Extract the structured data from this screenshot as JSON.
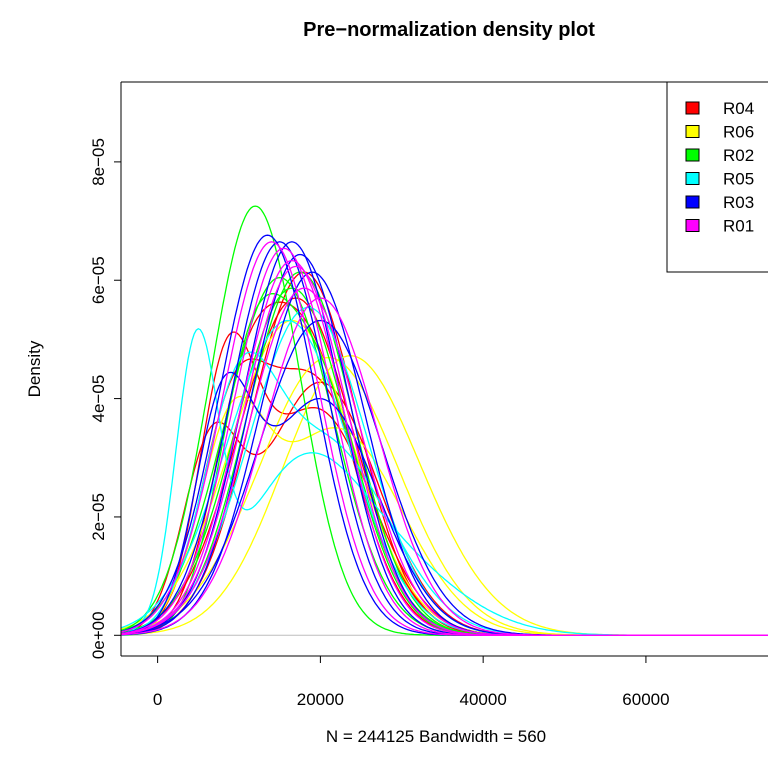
{
  "chart_data": {
    "type": "line",
    "title": "Pre−normalization density plot",
    "xlabel": "N = 244125   Bandwidth = 560",
    "ylabel": "Density",
    "xlim": [
      -4500,
      75000
    ],
    "ylim": [
      -3.5e-06,
      9.35e-05
    ],
    "x_ticks": [
      0,
      20000,
      40000,
      60000
    ],
    "x_tick_labels": [
      "0",
      "20000",
      "40000",
      "60000"
    ],
    "y_ticks": [
      0,
      2e-05,
      4e-05,
      6e-05,
      8e-05
    ],
    "y_tick_labels": [
      "0e+00",
      "2e−05",
      "4e−05",
      "6e−05",
      "8e−05"
    ],
    "grid": false,
    "baseline": 0,
    "legend_position": "top-right",
    "legend": [
      {
        "label": "R04",
        "color": "#ff0000"
      },
      {
        "label": "R06",
        "color": "#ffff00"
      },
      {
        "label": "R02",
        "color": "#00ff00"
      },
      {
        "label": "R05",
        "color": "#00ffff"
      },
      {
        "label": "R03",
        "color": "#0000ff"
      },
      {
        "label": "R01",
        "color": "#ff00ff"
      }
    ],
    "series": [
      {
        "color": "#ff0000",
        "comps": [
          [
            0.25,
            6500,
            3500
          ],
          [
            0.75,
            20000,
            7000
          ]
        ]
      },
      {
        "color": "#ff0000",
        "comps": [
          [
            0.3,
            9000,
            4000
          ],
          [
            0.7,
            19000,
            6500
          ]
        ]
      },
      {
        "color": "#ff0000",
        "comps": [
          [
            0.2,
            10000,
            3800
          ],
          [
            0.8,
            17500,
            6200
          ]
        ]
      },
      {
        "color": "#ff0000",
        "comps": [
          [
            1.0,
            17000,
            7000
          ]
        ]
      },
      {
        "color": "#ff0000",
        "comps": [
          [
            0.35,
            8500,
            3500
          ],
          [
            0.65,
            19500,
            6800
          ]
        ]
      },
      {
        "color": "#ff0000",
        "comps": [
          [
            1.0,
            18000,
            6500
          ]
        ]
      },
      {
        "color": "#ffff00",
        "comps": [
          [
            0.5,
            21500,
            7500
          ],
          [
            0.5,
            27000,
            8500
          ]
        ]
      },
      {
        "color": "#ffff00",
        "comps": [
          [
            1.0,
            21000,
            8500
          ]
        ]
      },
      {
        "color": "#ffff00",
        "comps": [
          [
            0.3,
            9000,
            4000
          ],
          [
            0.7,
            22000,
            8000
          ]
        ]
      },
      {
        "color": "#ffff00",
        "comps": [
          [
            1.0,
            16500,
            7500
          ]
        ]
      },
      {
        "color": "#00ff00",
        "comps": [
          [
            1.0,
            12000,
            5500
          ]
        ]
      },
      {
        "color": "#00ff00",
        "comps": [
          [
            1.0,
            15000,
            6600
          ]
        ]
      },
      {
        "color": "#00ff00",
        "comps": [
          [
            1.0,
            16500,
            6800
          ]
        ]
      },
      {
        "color": "#00ff00",
        "comps": [
          [
            1.0,
            17500,
            6500
          ]
        ]
      },
      {
        "color": "#00ff00",
        "comps": [
          [
            0.3,
            11000,
            4000
          ],
          [
            0.7,
            18500,
            6000
          ]
        ]
      },
      {
        "color": "#00ffff",
        "comps": [
          [
            0.3,
            4800,
            2600
          ],
          [
            0.4,
            17000,
            7000
          ],
          [
            0.3,
            27000,
            9000
          ]
        ]
      },
      {
        "color": "#00ffff",
        "comps": [
          [
            1.0,
            16000,
            7500
          ]
        ]
      },
      {
        "color": "#00ffff",
        "comps": [
          [
            1.0,
            18500,
            7200
          ]
        ]
      },
      {
        "color": "#00ffff",
        "comps": [
          [
            0.4,
            10000,
            4500
          ],
          [
            0.6,
            21000,
            7500
          ]
        ]
      },
      {
        "color": "#0000ff",
        "comps": [
          [
            1.0,
            13500,
            5900
          ]
        ]
      },
      {
        "color": "#0000ff",
        "comps": [
          [
            1.0,
            16500,
            6000
          ]
        ]
      },
      {
        "color": "#0000ff",
        "comps": [
          [
            1.0,
            20000,
            7500
          ]
        ]
      },
      {
        "color": "#0000ff",
        "comps": [
          [
            0.3,
            8000,
            3500
          ],
          [
            0.7,
            20000,
            7000
          ]
        ]
      },
      {
        "color": "#0000ff",
        "comps": [
          [
            1.0,
            17500,
            6200
          ]
        ]
      },
      {
        "color": "#0000ff",
        "comps": [
          [
            1.0,
            19000,
            6500
          ]
        ]
      },
      {
        "color": "#0000ff",
        "comps": [
          [
            1.0,
            15000,
            6000
          ]
        ]
      },
      {
        "color": "#ff00ff",
        "comps": [
          [
            1.0,
            14000,
            6000
          ]
        ]
      },
      {
        "color": "#ff00ff",
        "comps": [
          [
            1.0,
            16500,
            6300
          ]
        ]
      },
      {
        "color": "#ff00ff",
        "comps": [
          [
            1.0,
            18000,
            6800
          ]
        ]
      },
      {
        "color": "#ff00ff",
        "comps": [
          [
            1.0,
            15500,
            6100
          ]
        ]
      },
      {
        "color": "#ff00ff",
        "comps": [
          [
            1.0,
            17000,
            6400
          ]
        ]
      },
      {
        "color": "#ff00ff",
        "comps": [
          [
            1.0,
            20000,
            7000
          ]
        ]
      }
    ]
  }
}
